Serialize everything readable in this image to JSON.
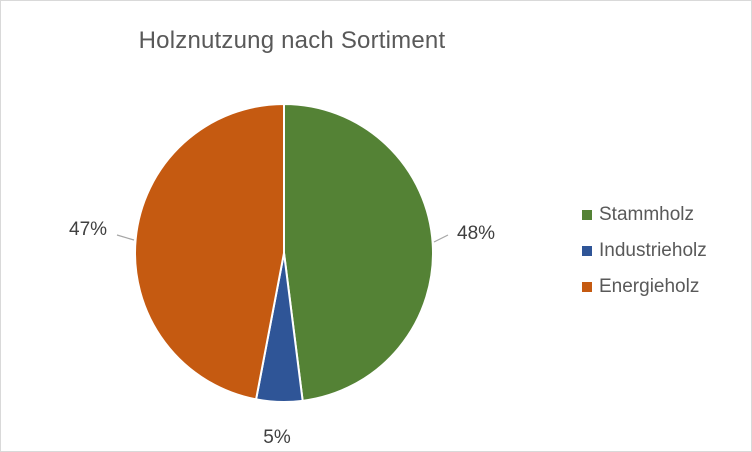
{
  "chart_data": {
    "type": "pie",
    "title": "Holznutzung nach Sortiment",
    "categories": [
      "Stammholz",
      "Industrieholz",
      "Energieholz"
    ],
    "values": [
      48,
      5,
      47
    ],
    "labels": [
      "48%",
      "5%",
      "47%"
    ],
    "colors": [
      "#548235",
      "#2F5597",
      "#C55A11"
    ],
    "legend_position": "right",
    "start_angle_deg": 0,
    "direction": "clockwise"
  }
}
